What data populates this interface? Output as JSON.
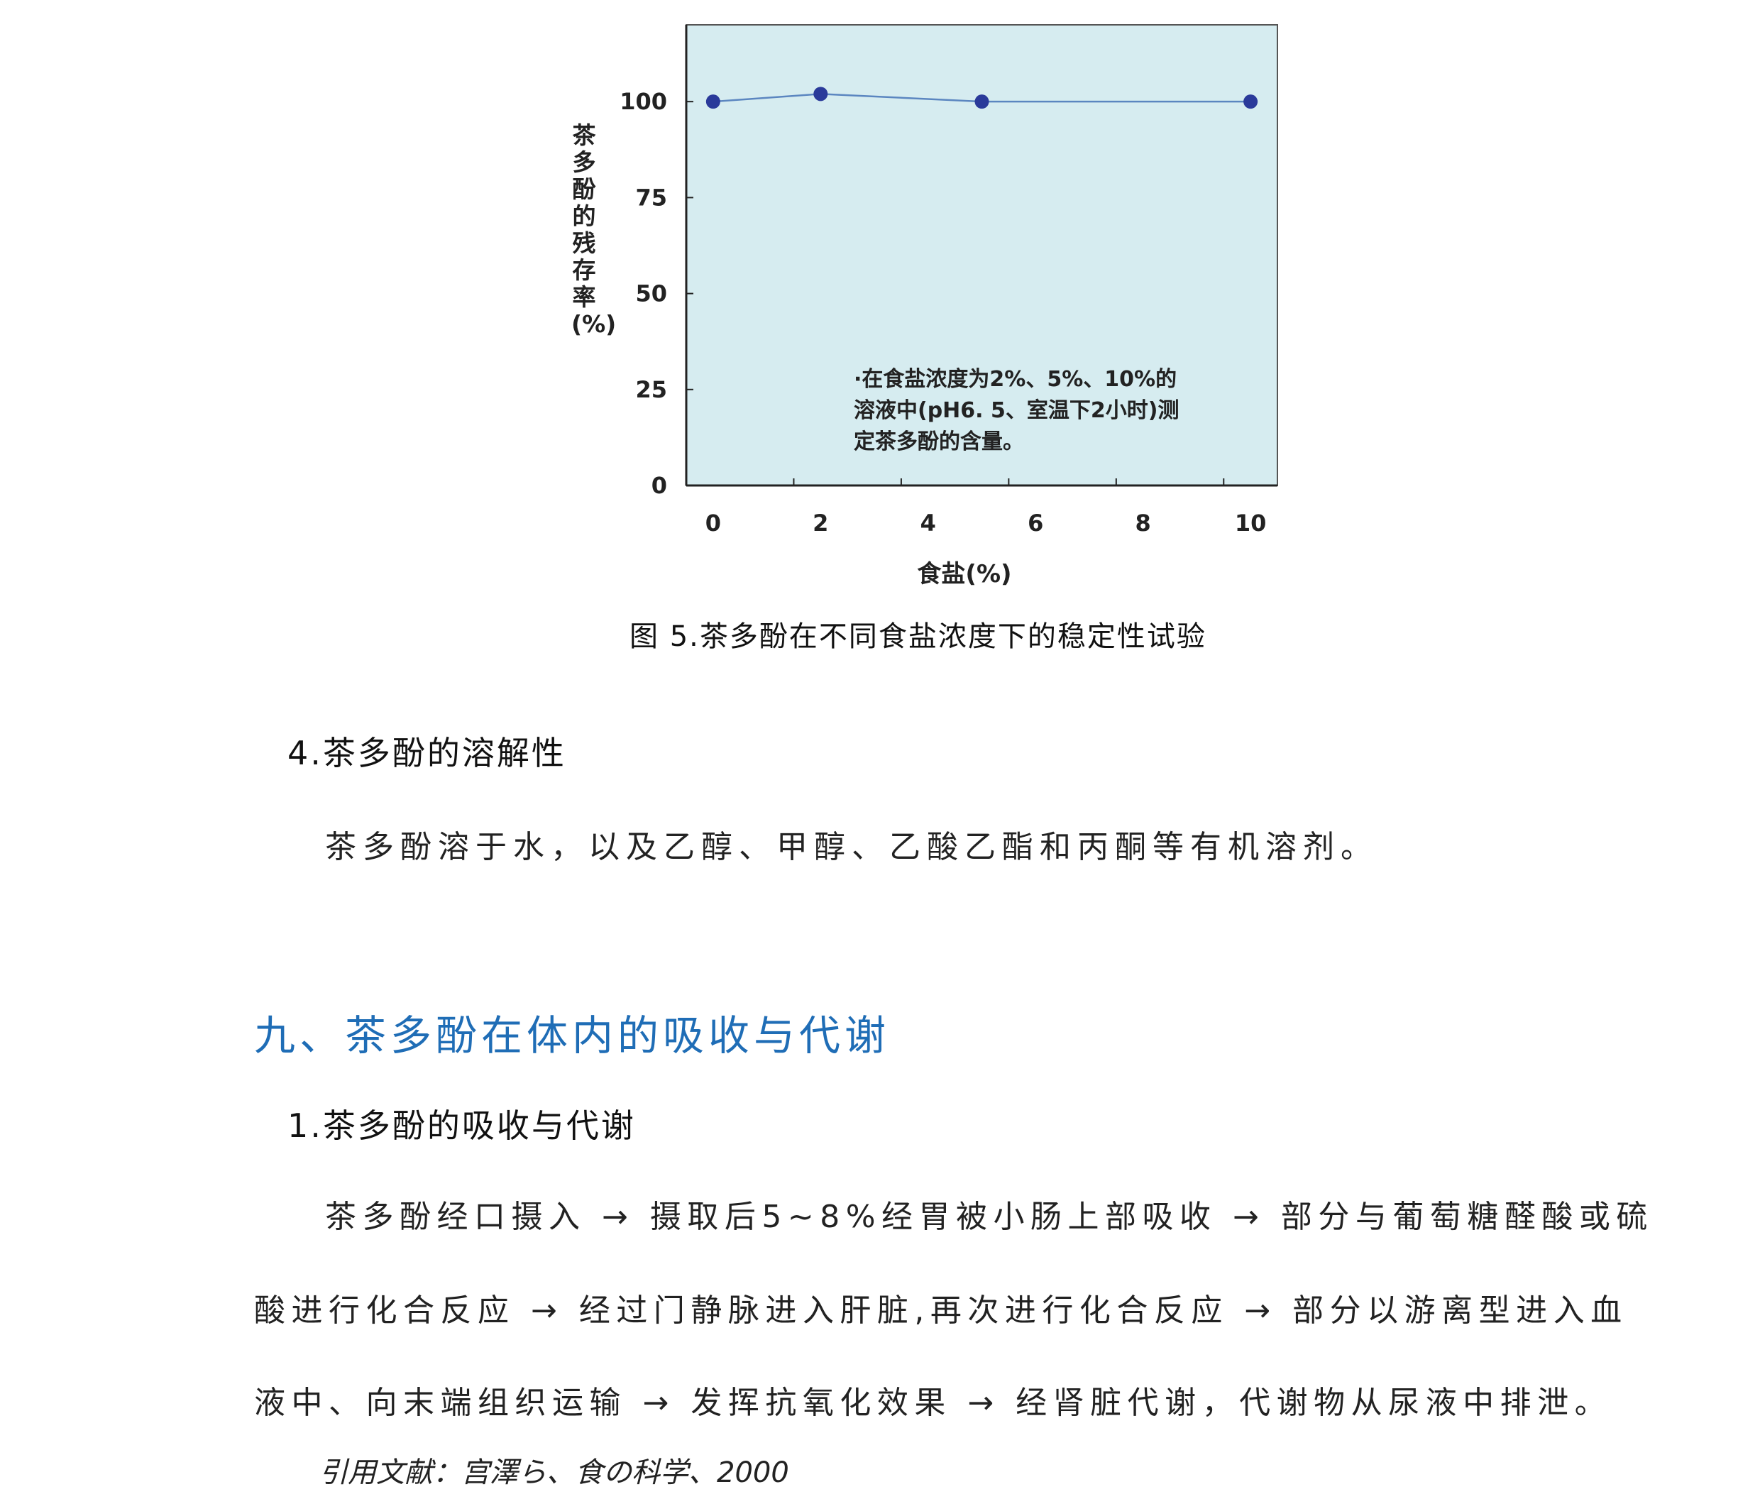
{
  "chart_data": {
    "type": "line",
    "x": [
      0,
      2,
      5,
      10
    ],
    "values": [
      100,
      102,
      100,
      100
    ],
    "xlabel": "食盐(%)",
    "ylabel": "茶多酚的残存率(%)",
    "xticks": [
      "0",
      "2",
      "4",
      "6",
      "8",
      "10"
    ],
    "yticks": [
      "0",
      "25",
      "50",
      "75",
      "100"
    ],
    "xlim": [
      -0.5,
      10.5
    ],
    "ylim": [
      0,
      120
    ],
    "grid": false,
    "annotation": [
      "·在食盐浓度为2%、5%、10%的",
      "溶液中(pH6. 5、室温下2小时)测",
      "定茶多酚的含量。"
    ],
    "colors": {
      "background": "#d6ecf0",
      "line": "#5b86c0",
      "marker": "#2a3a9a"
    }
  },
  "caption": "图 5.茶多酚在不同食盐浓度下的稳定性试验",
  "section4": {
    "heading": "4.茶多酚的溶解性",
    "text": "茶多酚溶于水，以及乙醇、甲醇、乙酸乙酯和丙酮等有机溶剂。"
  },
  "chapter9": {
    "heading": "九、茶多酚在体内的吸收与代谢",
    "heading_color": "#1f6db6",
    "sub1": {
      "heading": "1.茶多酚的吸收与代谢",
      "lines": [
        "茶多酚经口摄入 → 摄取后5~8%经胃被小肠上部吸收 → 部分与葡萄糖醛酸或硫",
        "酸进行化合反应 → 经过门静脉进入肝脏,再次进行化合反应 → 部分以游离型进入血",
        "液中、向末端组织运输 → 发挥抗氧化效果 → 经肾脏代谢，代谢物从尿液中排泄。"
      ],
      "citation": "引用文献：宫澤ら、食の科学、2000"
    }
  }
}
